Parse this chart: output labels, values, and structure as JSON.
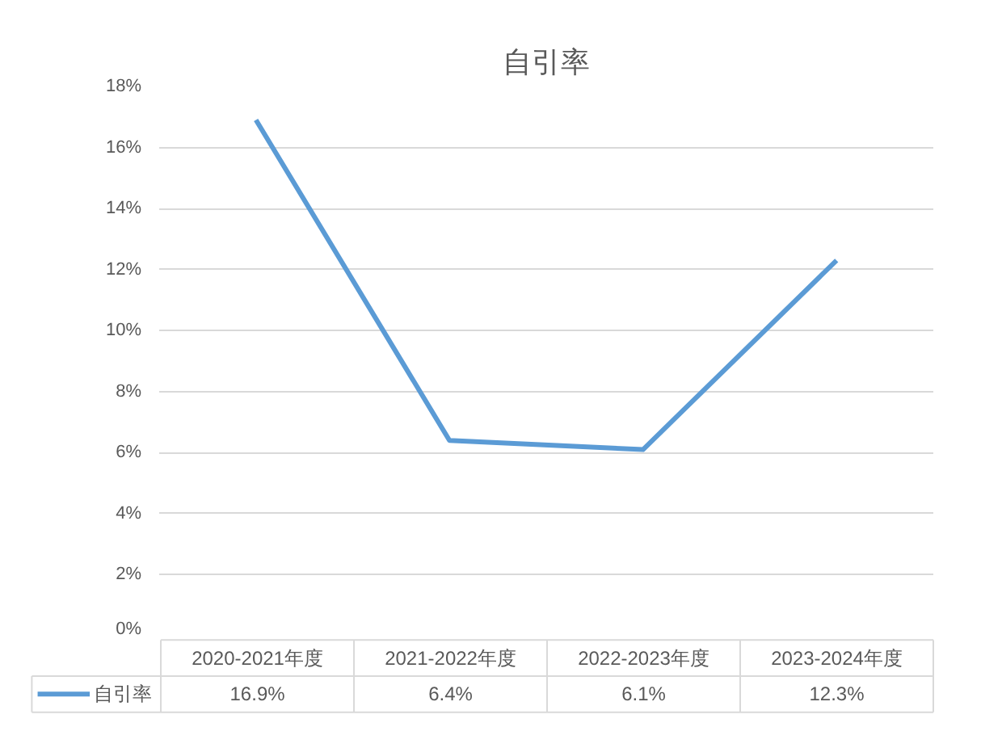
{
  "chart_data": {
    "type": "line",
    "title": "自引率",
    "categories": [
      "2020-2021年度",
      "2021-2022年度",
      "2022-2023年度",
      "2023-2024年度"
    ],
    "series": [
      {
        "name": "自引率",
        "color": "#5b9bd5",
        "values": [
          16.9,
          6.4,
          6.1,
          12.3
        ],
        "value_labels": [
          "16.9%",
          "6.4%",
          "6.1%",
          "12.3%"
        ]
      }
    ],
    "ylim": [
      0,
      18
    ],
    "yticks": [
      {
        "value": 0,
        "label": "0%"
      },
      {
        "value": 2,
        "label": "2%"
      },
      {
        "value": 4,
        "label": "4%"
      },
      {
        "value": 6,
        "label": "6%"
      },
      {
        "value": 8,
        "label": "8%"
      },
      {
        "value": 10,
        "label": "10%"
      },
      {
        "value": 12,
        "label": "12%"
      },
      {
        "value": 14,
        "label": "14%"
      },
      {
        "value": 16,
        "label": "16%"
      },
      {
        "value": 18,
        "label": "18%"
      }
    ],
    "grid": "y",
    "legend": "bottom left",
    "marker": "none",
    "line_style": "solid"
  }
}
